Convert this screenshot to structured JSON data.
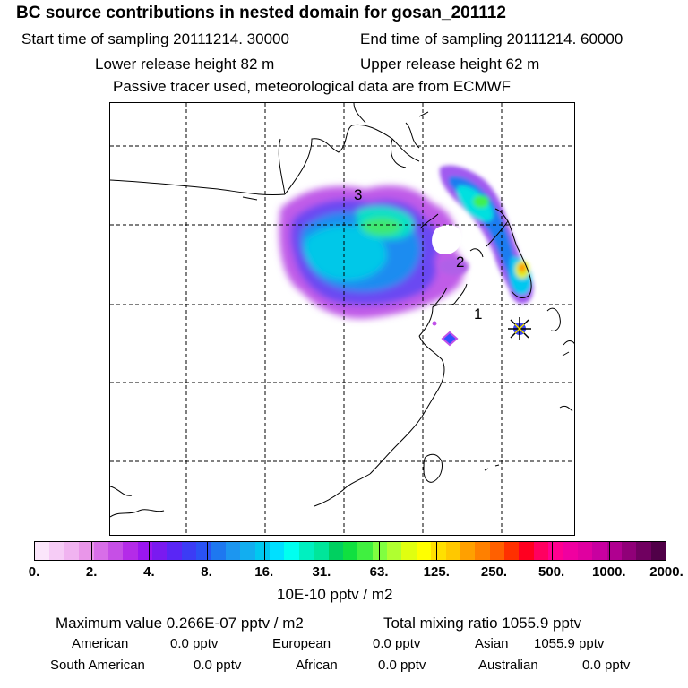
{
  "header": {
    "title": "BC  source contributions in nested domain for gosan_201112",
    "start_time": "Start time of sampling 20111214. 30000",
    "end_time": "End time of sampling 20111214. 60000",
    "lower_release": "Lower release height   82 m",
    "upper_release": "Upper release height   62 m",
    "tracer_note": "Passive tracer used, meteorological data are from ECMWF"
  },
  "map": {
    "labels": [
      "1",
      "2",
      "3"
    ],
    "receptor_marker": "star-icon"
  },
  "colorbar": {
    "ticks": [
      "0.",
      "2.",
      "4.",
      "8.",
      "16.",
      "31.",
      "63.",
      "125.",
      "250.",
      "500.",
      "1000.",
      "2000."
    ],
    "unit": "10E-10 pptv / m2",
    "colors": [
      "#fbe6fb",
      "#f6ccf6",
      "#f0b3f0",
      "#e996e9",
      "#d86ee8",
      "#c64fe6",
      "#b42be8",
      "#9b16f0",
      "#7a1af0",
      "#5a26f5",
      "#3c3cf5",
      "#2a52f5",
      "#1e78f0",
      "#1c96f0",
      "#12aef0",
      "#00c8f0",
      "#00e0ff",
      "#00fff0",
      "#00f0c0",
      "#00e69a",
      "#00d060",
      "#10e040",
      "#40f040",
      "#80ff40",
      "#b0ff30",
      "#e0ff10",
      "#ffff00",
      "#ffe000",
      "#ffc800",
      "#ffa000",
      "#ff8000",
      "#ff6000",
      "#ff3000",
      "#ff0020",
      "#ff0060",
      "#ff0090",
      "#f000a0",
      "#e000a0",
      "#c800a0",
      "#b00090",
      "#900078",
      "#700060",
      "#500048"
    ]
  },
  "footer": {
    "max_label": "Maximum value  0.266E-07 pptv / m2",
    "total_label": "Total mixing ratio     1055.9 pptv",
    "american": "American",
    "american_val": "0.0 pptv",
    "european": "European",
    "european_val": "0.0 pptv",
    "asian": "Asian",
    "asian_val": "1055.9 pptv",
    "south_american": "South American",
    "south_american_val": "0.0 pptv",
    "african": "African",
    "african_val": "0.0 pptv",
    "australian": "Australian",
    "australian_val": "0.0 pptv"
  }
}
